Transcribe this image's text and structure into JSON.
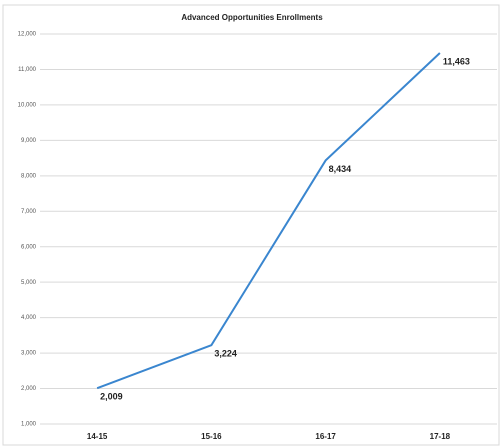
{
  "chart_data": {
    "type": "line",
    "title": "Advanced Opportunities Enrollments",
    "categories": [
      "14-15",
      "15-16",
      "16-17",
      "17-18"
    ],
    "series": [
      {
        "name": "Enrollments",
        "color": "#3a86cf",
        "values": [
          2009,
          3224,
          8434,
          11463
        ],
        "value_labels": [
          "2,009",
          "3,224",
          "8,434",
          "11,463"
        ]
      }
    ],
    "ylim": [
      1000,
      12000
    ],
    "yticks": [
      {
        "value": 1000,
        "label": "1,000"
      },
      {
        "value": 2000,
        "label": "2,000"
      },
      {
        "value": 3000,
        "label": "3,000"
      },
      {
        "value": 4000,
        "label": "4,000"
      },
      {
        "value": 5000,
        "label": "5,000"
      },
      {
        "value": 6000,
        "label": "6,000"
      },
      {
        "value": 7000,
        "label": "7,000"
      },
      {
        "value": 8000,
        "label": "8,000"
      },
      {
        "value": 9000,
        "label": "9,000"
      },
      {
        "value": 10000,
        "label": "10,000"
      },
      {
        "value": 11000,
        "label": "11,000"
      },
      {
        "value": 12000,
        "label": "12,000"
      }
    ],
    "grid": true
  }
}
